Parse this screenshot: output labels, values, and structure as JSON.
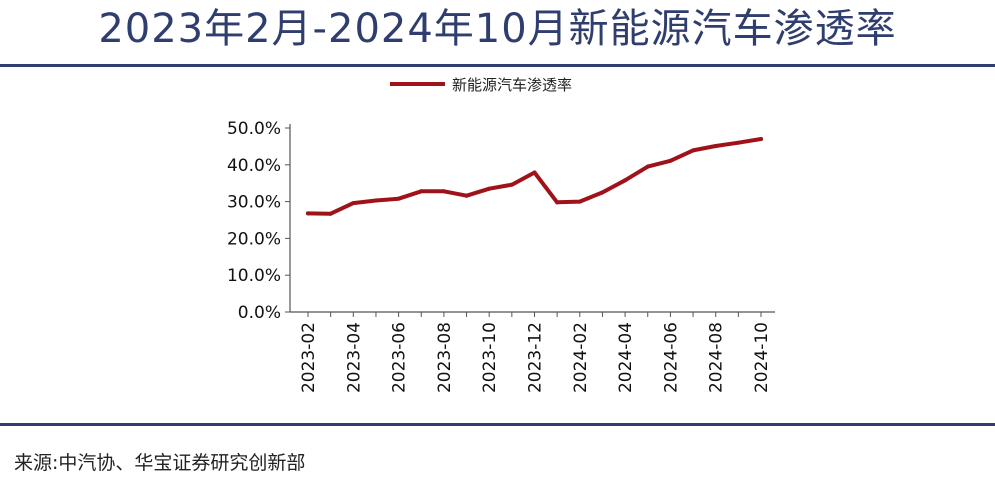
{
  "header": {
    "title": "2023年2月-2024年10月新能源汽车渗透率"
  },
  "footer": {
    "source": "来源:中汽协、华宝证券研究创新部"
  },
  "colors": {
    "line": "#a0121a",
    "title": "#2f3e6e",
    "axis": "#555555"
  },
  "chart_data": {
    "type": "line",
    "title": "",
    "xlabel": "",
    "ylabel": "",
    "ylim": [
      0,
      50
    ],
    "y_ticks": [
      "0.0%",
      "10.0%",
      "20.0%",
      "30.0%",
      "40.0%",
      "50.0%"
    ],
    "y_tick_values": [
      0,
      10,
      20,
      30,
      40,
      50
    ],
    "x": [
      "2023-02",
      "2023-03",
      "2023-04",
      "2023-05",
      "2023-06",
      "2023-07",
      "2023-08",
      "2023-09",
      "2023-10",
      "2023-11",
      "2023-12",
      "2024-01",
      "2024-02",
      "2024-03",
      "2024-04",
      "2024-05",
      "2024-06",
      "2024-07",
      "2024-08",
      "2024-09",
      "2024-10"
    ],
    "x_tick_labels": [
      "2023-02",
      "2023-04",
      "2023-06",
      "2023-08",
      "2023-10",
      "2023-12",
      "2024-02",
      "2024-04",
      "2024-06",
      "2024-08",
      "2024-10"
    ],
    "series": [
      {
        "name": "新能源汽车渗透率",
        "values": [
          26.8,
          26.7,
          29.6,
          30.3,
          30.8,
          32.8,
          32.8,
          31.6,
          33.5,
          34.6,
          37.9,
          29.8,
          30.0,
          32.5,
          35.8,
          39.5,
          41.1,
          43.9,
          45.1,
          46.0,
          47.0
        ]
      }
    ],
    "legend": {
      "position": "top-center"
    },
    "grid": false
  }
}
